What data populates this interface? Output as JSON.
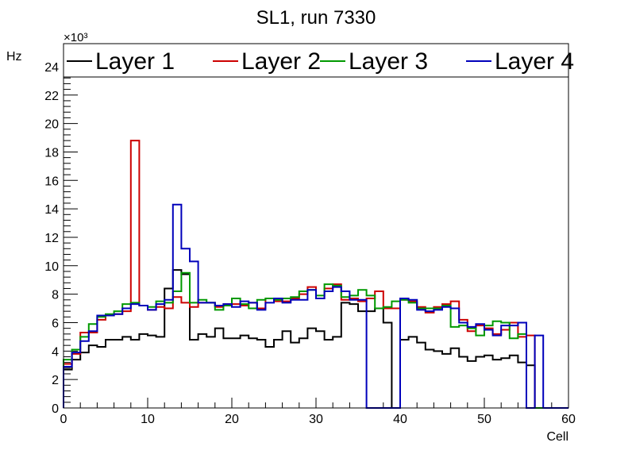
{
  "chart_data": {
    "type": "line",
    "title": "SL1, run 7330",
    "xlabel": "Cell",
    "ylabel": "Hz",
    "y_multiplier_label": "×10³",
    "xlim": [
      0,
      60
    ],
    "ylim": [
      0,
      25
    ],
    "x_ticks": [
      0,
      10,
      20,
      30,
      40,
      50,
      60
    ],
    "y_ticks": [
      0,
      2,
      4,
      6,
      8,
      10,
      12,
      14,
      16,
      18,
      20,
      22,
      24
    ],
    "bin_edges_start": 0,
    "bin_width": 1,
    "legend_position": "top",
    "series": [
      {
        "name": "Layer 1",
        "color": "#000000",
        "values": [
          2.7,
          3.4,
          3.9,
          4.4,
          4.3,
          4.8,
          4.8,
          5.0,
          4.8,
          5.2,
          5.1,
          5.0,
          8.4,
          9.7,
          9.4,
          4.8,
          5.2,
          5.0,
          5.6,
          4.9,
          4.9,
          5.1,
          4.9,
          4.8,
          4.3,
          4.8,
          5.4,
          4.6,
          4.9,
          5.6,
          5.4,
          4.8,
          5.0,
          7.4,
          7.3,
          6.8,
          6.8,
          7.0,
          6.0,
          0.0,
          4.8,
          5.0,
          4.6,
          4.1,
          4.0,
          3.8,
          4.2,
          3.6,
          3.3,
          3.6,
          3.7,
          3.4,
          3.5,
          3.7,
          3.2,
          3.0,
          0.0,
          0.0,
          0.0,
          0.0
        ]
      },
      {
        "name": "Layer 2",
        "color": "#cc0000",
        "values": [
          3.1,
          3.8,
          5.3,
          5.3,
          6.2,
          6.5,
          6.6,
          6.8,
          18.8,
          7.2,
          6.9,
          7.1,
          7.0,
          7.8,
          7.4,
          7.1,
          7.4,
          7.4,
          7.1,
          7.3,
          7.3,
          7.2,
          7.4,
          7.0,
          7.7,
          7.5,
          7.5,
          7.7,
          8.0,
          8.5,
          7.7,
          8.4,
          8.7,
          7.6,
          7.7,
          7.5,
          7.7,
          8.2,
          7.0,
          7.0,
          7.6,
          7.5,
          7.1,
          6.7,
          7.1,
          7.3,
          7.5,
          6.2,
          5.4,
          5.8,
          5.6,
          5.2,
          5.5,
          6.0,
          5.0,
          5.1,
          0.0,
          0.0,
          0.0,
          0.0
        ]
      },
      {
        "name": "Layer 3",
        "color": "#009900",
        "values": [
          3.4,
          4.1,
          5.0,
          5.9,
          6.4,
          6.6,
          6.8,
          7.3,
          7.4,
          7.2,
          7.1,
          7.5,
          7.4,
          8.2,
          9.5,
          7.4,
          7.6,
          7.4,
          6.9,
          7.2,
          7.7,
          7.3,
          7.0,
          7.6,
          7.7,
          7.6,
          7.7,
          7.8,
          8.2,
          8.3,
          7.9,
          8.7,
          8.6,
          7.8,
          7.9,
          8.3,
          7.9,
          7.0,
          7.1,
          7.5,
          7.6,
          7.4,
          7.0,
          7.0,
          7.0,
          7.2,
          5.7,
          5.8,
          5.6,
          5.1,
          5.8,
          6.1,
          6.0,
          4.9,
          5.2,
          0.0,
          0.0,
          0.0,
          0.0,
          0.0
        ]
      },
      {
        "name": "Layer 4",
        "color": "#0000bb",
        "values": [
          2.9,
          3.9,
          4.7,
          5.4,
          6.5,
          6.5,
          6.6,
          7.0,
          7.3,
          7.2,
          6.9,
          7.3,
          7.6,
          14.3,
          11.2,
          10.3,
          7.4,
          7.4,
          7.2,
          7.3,
          7.1,
          7.5,
          7.4,
          6.9,
          7.4,
          7.7,
          7.4,
          7.6,
          7.6,
          8.3,
          7.7,
          8.2,
          8.5,
          8.2,
          7.6,
          7.6,
          0.0,
          0.0,
          0.0,
          0.0,
          7.7,
          7.6,
          6.9,
          6.8,
          6.9,
          7.1,
          7.0,
          6.0,
          5.7,
          5.9,
          5.5,
          5.1,
          5.8,
          5.8,
          6.0,
          0.0,
          5.1,
          0.0,
          0.0,
          0.0
        ]
      }
    ]
  }
}
